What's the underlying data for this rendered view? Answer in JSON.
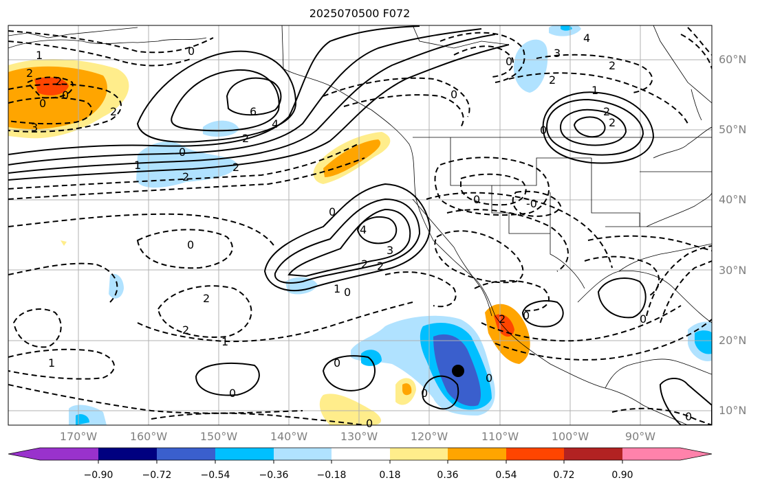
{
  "title": "2025070500 F072",
  "colors": {
    "shading": [
      "#9932cc",
      "#000080",
      "#3a5fcd",
      "#00bfff",
      "#b0e2ff",
      "#ffffff",
      "#ffed8b",
      "#ffa500",
      "#ff4500",
      "#b22222",
      "#ff82ab"
    ],
    "land_outline": "#000000",
    "grid": "#b0b0b0"
  },
  "lat_labels": [
    "60°N",
    "50°N",
    "40°N",
    "30°N",
    "20°N",
    "10°N"
  ],
  "lon_labels": [
    "170°W",
    "160°W",
    "150°W",
    "140°W",
    "130°W",
    "120°W",
    "110°W",
    "100°W",
    "90°W"
  ],
  "colorbar": {
    "ticks": [
      "−0.90",
      "−0.72",
      "−0.54",
      "−0.36",
      "−0.18",
      "0.18",
      "0.36",
      "0.54",
      "0.72",
      "0.90"
    ]
  },
  "contour_labels": [
    {
      "text": "1",
      "key": "c1"
    },
    {
      "text": "2",
      "key": "c2"
    },
    {
      "text": "2",
      "key": "c3"
    },
    {
      "text": "0",
      "key": "c4"
    },
    {
      "text": "0",
      "key": "c5"
    },
    {
      "text": "3",
      "key": "c6"
    },
    {
      "text": "2",
      "key": "c7"
    },
    {
      "text": "0",
      "key": "c8"
    },
    {
      "text": "6",
      "key": "c9"
    },
    {
      "text": "4",
      "key": "c10"
    },
    {
      "text": "2",
      "key": "c11"
    },
    {
      "text": "0",
      "key": "c12"
    },
    {
      "text": "1",
      "key": "c13"
    },
    {
      "text": "2",
      "key": "c14"
    },
    {
      "text": "2",
      "key": "c15"
    },
    {
      "text": "0",
      "key": "c16"
    },
    {
      "text": "4",
      "key": "c17"
    },
    {
      "text": "3",
      "key": "c18"
    },
    {
      "text": "2",
      "key": "c19"
    },
    {
      "text": "2",
      "key": "c20"
    },
    {
      "text": "1",
      "key": "c21"
    },
    {
      "text": "0",
      "key": "c22"
    },
    {
      "text": "0",
      "key": "c23"
    },
    {
      "text": "2",
      "key": "c24"
    },
    {
      "text": "2",
      "key": "c25"
    },
    {
      "text": "1",
      "key": "c26"
    },
    {
      "text": "1",
      "key": "c27"
    },
    {
      "text": "0",
      "key": "c28"
    },
    {
      "text": "0",
      "key": "c29"
    },
    {
      "text": "0",
      "key": "c30"
    },
    {
      "text": "0",
      "key": "c31"
    },
    {
      "text": "2",
      "key": "c32"
    },
    {
      "text": "0",
      "key": "c33"
    },
    {
      "text": "0",
      "key": "c34"
    },
    {
      "text": "-0",
      "key": "c35"
    },
    {
      "text": "3",
      "key": "c36"
    },
    {
      "text": "4",
      "key": "c37"
    },
    {
      "text": "2",
      "key": "c38"
    },
    {
      "text": "1",
      "key": "c39"
    },
    {
      "text": "2",
      "key": "c40"
    },
    {
      "text": "2",
      "key": "c41"
    },
    {
      "text": "0",
      "key": "c42"
    },
    {
      "text": "0",
      "key": "c43"
    },
    {
      "text": "0",
      "key": "c44"
    },
    {
      "text": "0",
      "key": "c45"
    },
    {
      "text": "0",
      "key": "c46"
    },
    {
      "text": "2",
      "key": "c47"
    },
    {
      "text": "0",
      "key": "c48"
    }
  ],
  "marker": {
    "name": "storm-center-marker"
  }
}
